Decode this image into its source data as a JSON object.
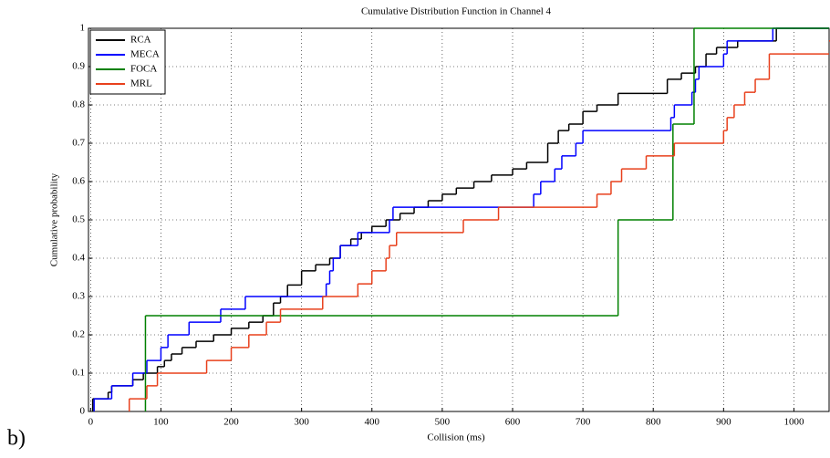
{
  "chart_data": {
    "type": "step",
    "title": "Cumulative Distribution Function in Channel 4",
    "x_label": "Collision (ms)",
    "y_label": "Cumulative probability",
    "annotation": "b)",
    "xlim": [
      -3,
      1050
    ],
    "ylim": [
      0,
      1
    ],
    "xticks": [
      0,
      100,
      200,
      300,
      400,
      500,
      600,
      700,
      800,
      900,
      1000
    ],
    "yticks": [
      0,
      0.1,
      0.2,
      0.3,
      0.4,
      0.5,
      0.6,
      0.7,
      0.8,
      0.9,
      1
    ],
    "grid": true,
    "legend": "upper-left",
    "series": [
      {
        "name": "RCA",
        "color": "#000000",
        "x": [
          3,
          25,
          30,
          60,
          75,
          95,
          105,
          115,
          130,
          150,
          175,
          200,
          225,
          245,
          260,
          270,
          280,
          300,
          320,
          340,
          355,
          370,
          385,
          400,
          420,
          440,
          460,
          480,
          500,
          520,
          545,
          570,
          600,
          620,
          650,
          665,
          680,
          700,
          720,
          750,
          820,
          840,
          860,
          875,
          890,
          920,
          975
        ],
        "values": [
          0.033,
          0.05,
          0.067,
          0.083,
          0.1,
          0.117,
          0.133,
          0.15,
          0.167,
          0.183,
          0.2,
          0.217,
          0.233,
          0.25,
          0.283,
          0.3,
          0.33,
          0.367,
          0.383,
          0.4,
          0.433,
          0.45,
          0.467,
          0.483,
          0.5,
          0.517,
          0.533,
          0.55,
          0.567,
          0.583,
          0.6,
          0.617,
          0.633,
          0.65,
          0.7,
          0.733,
          0.75,
          0.783,
          0.8,
          0.83,
          0.867,
          0.883,
          0.9,
          0.933,
          0.95,
          0.967,
          1
        ]
      },
      {
        "name": "MECA",
        "color": "#0000ff",
        "x": [
          5,
          30,
          60,
          80,
          100,
          110,
          140,
          185,
          220,
          335,
          340,
          345,
          355,
          380,
          425,
          430,
          630,
          640,
          660,
          670,
          690,
          700,
          825,
          830,
          855,
          860,
          865,
          900,
          905,
          970
        ],
        "values": [
          0.033,
          0.067,
          0.1,
          0.133,
          0.167,
          0.2,
          0.233,
          0.267,
          0.3,
          0.333,
          0.367,
          0.4,
          0.433,
          0.467,
          0.5,
          0.533,
          0.567,
          0.6,
          0.633,
          0.667,
          0.7,
          0.733,
          0.767,
          0.8,
          0.833,
          0.867,
          0.9,
          0.933,
          0.967,
          1
        ]
      },
      {
        "name": "FOCA",
        "color": "#008000",
        "x": [
          78,
          750,
          828,
          858
        ],
        "values": [
          0.25,
          0.5,
          0.75,
          1
        ]
      },
      {
        "name": "MRL",
        "color": "#e8401c",
        "x": [
          55,
          80,
          95,
          165,
          200,
          225,
          250,
          270,
          330,
          380,
          400,
          420,
          425,
          435,
          530,
          580,
          720,
          740,
          755,
          790,
          830,
          900,
          905,
          915,
          930,
          945,
          965,
          1055
        ],
        "values": [
          0.033,
          0.067,
          0.1,
          0.133,
          0.167,
          0.2,
          0.233,
          0.267,
          0.3,
          0.333,
          0.367,
          0.4,
          0.433,
          0.467,
          0.5,
          0.533,
          0.567,
          0.6,
          0.633,
          0.667,
          0.7,
          0.733,
          0.767,
          0.8,
          0.833,
          0.867,
          0.933,
          0.967
        ]
      }
    ]
  }
}
